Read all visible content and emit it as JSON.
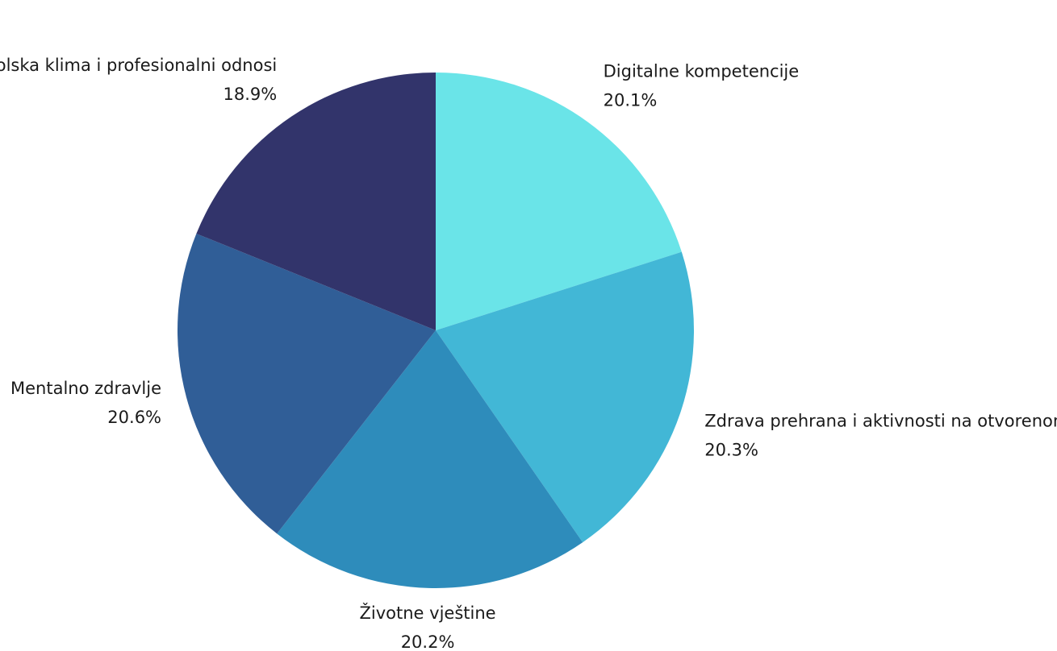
{
  "chart_data": {
    "type": "pie",
    "categories": [
      "Digitalne kompetencije",
      "Zdrava prehrana i aktivnosti na otvorenom",
      "Životne vještine",
      "Mentalno zdravlje",
      "Pozitivna školska klima i profesionalni odnosi"
    ],
    "values": [
      20.1,
      20.3,
      20.2,
      20.6,
      18.9
    ],
    "value_labels": [
      "20.1%",
      "20.3%",
      "20.2%",
      "20.6%",
      "18.9%"
    ],
    "colors": [
      "#6ae4e8",
      "#42b7d6",
      "#2e8cbb",
      "#305e97",
      "#32346b"
    ]
  }
}
